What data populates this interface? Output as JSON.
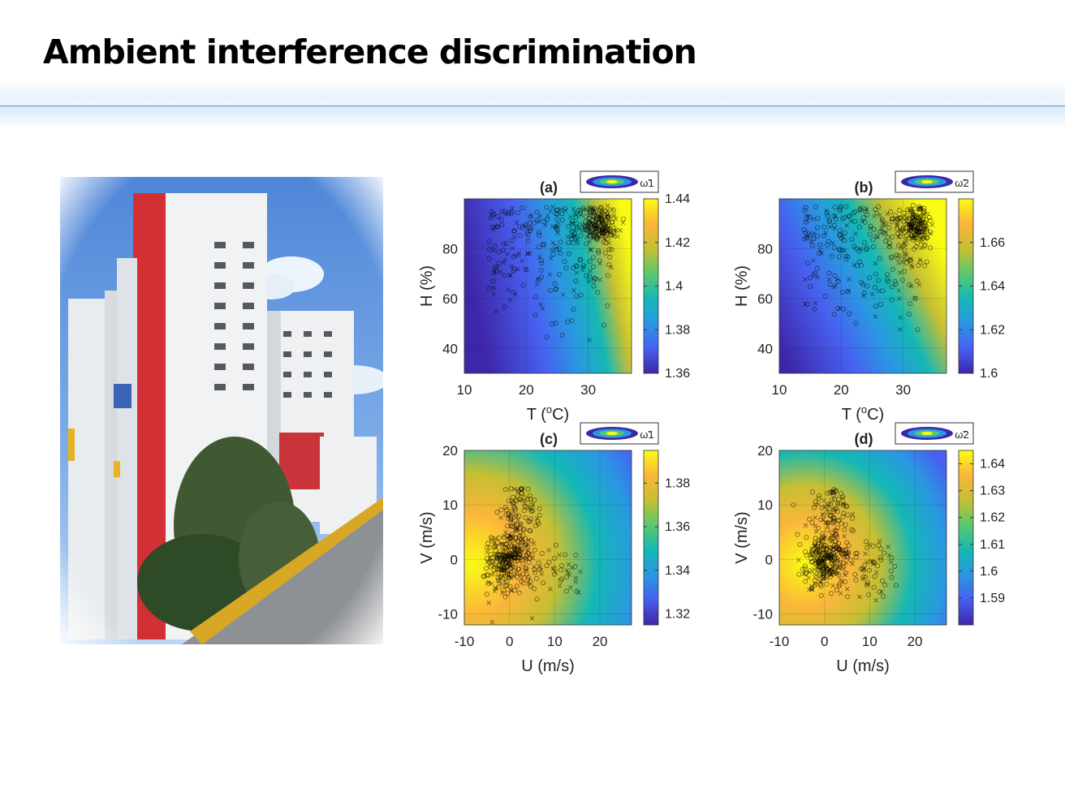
{
  "slide": {
    "title": "Ambient interference discrimination"
  },
  "photo": {
    "subject": "high-rise-residential-building"
  },
  "colormap": [
    "#3e26a8",
    "#4760f0",
    "#2a97e2",
    "#14b8b5",
    "#5bc86c",
    "#c5bf33",
    "#fbb63a",
    "#f9fb15"
  ],
  "chart_data": [
    {
      "type": "heatmap",
      "panel": "(a)",
      "legend": "ω̃1",
      "xlabel": "T (oC)",
      "ylabel": "H (%)",
      "xlim": [
        10,
        37
      ],
      "ylim": [
        30,
        100
      ],
      "xticks": [
        "10",
        "20",
        "30"
      ],
      "yticks": [
        "40",
        "60",
        "80"
      ],
      "colorbar": {
        "min": 1.36,
        "max": 1.44,
        "ticks": [
          "1.44",
          "1.42",
          "1.4",
          "1.38",
          "1.36"
        ]
      },
      "markers": [
        "o",
        "x"
      ]
    },
    {
      "type": "heatmap",
      "panel": "(b)",
      "legend": "ω̃2",
      "xlabel": "T (oC)",
      "ylabel": "H (%)",
      "xlim": [
        10,
        37
      ],
      "ylim": [
        30,
        100
      ],
      "xticks": [
        "10",
        "20",
        "30"
      ],
      "yticks": [
        "40",
        "60",
        "80"
      ],
      "colorbar": {
        "min": 1.6,
        "max": 1.68,
        "ticks": [
          "1.66",
          "1.64",
          "1.62",
          "1.6"
        ]
      },
      "markers": [
        "o",
        "x"
      ]
    },
    {
      "type": "heatmap",
      "panel": "(c)",
      "legend": "ω̃1",
      "xlabel": "U (m/s)",
      "ylabel": "V (m/s)",
      "xlim": [
        -10,
        27
      ],
      "ylim": [
        -12,
        20
      ],
      "xticks": [
        "-10",
        "0",
        "10",
        "20"
      ],
      "yticks": [
        "20",
        "10",
        "0",
        "-10"
      ],
      "colorbar": {
        "min": 1.315,
        "max": 1.395,
        "ticks": [
          "1.38",
          "1.36",
          "1.34",
          "1.32"
        ]
      },
      "markers": [
        "o",
        "x"
      ]
    },
    {
      "type": "heatmap",
      "panel": "(d)",
      "legend": "ω̃2",
      "xlabel": "U (m/s)",
      "ylabel": "V (m/s)",
      "xlim": [
        -10,
        27
      ],
      "ylim": [
        -12,
        20
      ],
      "xticks": [
        "-10",
        "0",
        "10",
        "20"
      ],
      "yticks": [
        "20",
        "10",
        "0",
        "-10"
      ],
      "colorbar": {
        "min": 1.58,
        "max": 1.645,
        "ticks": [
          "1.64",
          "1.63",
          "1.62",
          "1.61",
          "1.6",
          "1.59"
        ]
      },
      "markers": [
        "o",
        "x"
      ]
    }
  ]
}
